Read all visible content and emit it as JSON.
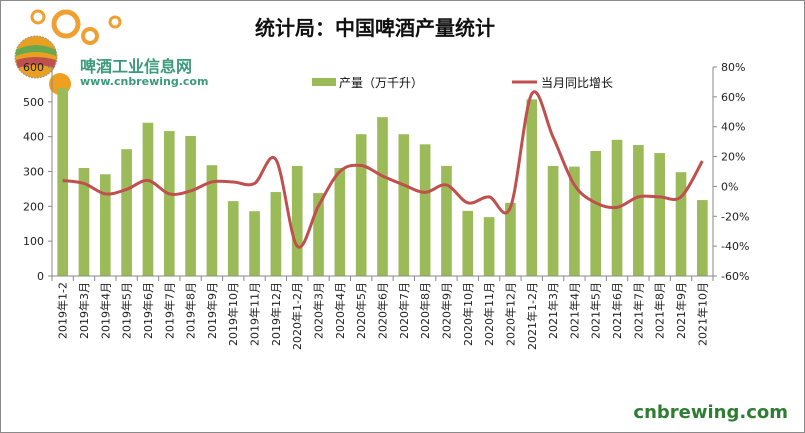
{
  "chart_data": {
    "type": "bar+line",
    "title": "统计局：中国啤酒产量统计",
    "categories": [
      "2019年1-2",
      "2019年3月",
      "2019年4月",
      "2019年5月",
      "2019年6月",
      "2019年7月",
      "2019年8月",
      "2019年9月",
      "2019年10月",
      "2019年11月",
      "2019年12月",
      "2020年1-2月",
      "2020年3月",
      "2020年4月",
      "2020年5月",
      "2020年6月",
      "2020年7月",
      "2020年8月",
      "2020年9月",
      "2020年10月",
      "2020年11月",
      "2020年12月",
      "2021年1-2月",
      "2021年3月",
      "2021年4月",
      "2021年5月",
      "2021年6月",
      "2021年7月",
      "2021年8月",
      "2021年9月",
      "2021年10月"
    ],
    "series": [
      {
        "name": "产量（万千升）",
        "type": "bar",
        "axis": "left",
        "color": "#9bbb59",
        "values": [
          540,
          310,
          292,
          364,
          440,
          416,
          402,
          318,
          215,
          186,
          241,
          316,
          238,
          310,
          407,
          456,
          407,
          378,
          316,
          187,
          169,
          210,
          507,
          316,
          314,
          359,
          391,
          376,
          353,
          298,
          218
        ]
      },
      {
        "name": "当月同比增长",
        "type": "line",
        "axis": "right",
        "color": "#c0504d",
        "values": [
          4,
          2,
          -5,
          -2,
          4,
          -5,
          -3,
          3,
          3,
          2,
          18,
          -40,
          -13,
          10,
          14,
          7,
          1,
          -4,
          1,
          -11,
          -7,
          -14,
          62,
          33,
          1,
          -11,
          -14,
          -7,
          -7,
          -7,
          17
        ]
      }
    ],
    "y_left": {
      "range": [
        0,
        600
      ],
      "ticks": [
        "0",
        "100",
        "200",
        "300",
        "400",
        "500",
        "600"
      ]
    },
    "y_right": {
      "range": [
        -60,
        80
      ],
      "ticks": [
        "-60%",
        "-40%",
        "-20%",
        "0%",
        "20%",
        "40%",
        "60%",
        "80%"
      ]
    },
    "legend_placement": "top",
    "grid": false
  },
  "branding": {
    "logo_cn": "啤酒工业信息网",
    "logo_url": "www.cnbrewing.com",
    "watermark": "cnbrewing.com"
  }
}
